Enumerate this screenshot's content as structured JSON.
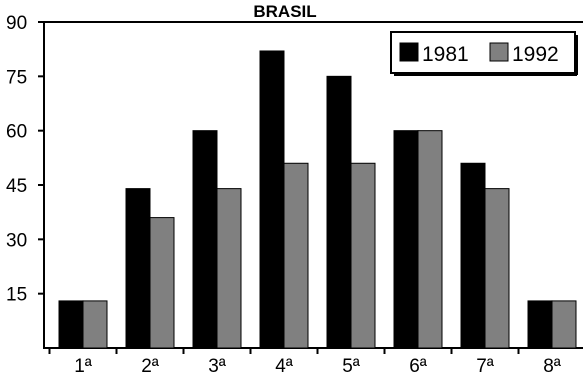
{
  "chart_data": {
    "type": "bar",
    "title": "BRASIL",
    "categories": [
      "1ª",
      "2ª",
      "3ª",
      "4ª",
      "5ª",
      "6ª",
      "7ª",
      "8ª"
    ],
    "series": [
      {
        "name": "1981",
        "values": [
          13,
          44,
          60,
          82,
          75,
          60,
          51,
          13
        ],
        "color": "#000000"
      },
      {
        "name": "1992",
        "values": [
          13,
          36,
          44,
          51,
          51,
          60,
          44,
          13
        ],
        "color": "#808080"
      }
    ],
    "ylim": [
      0,
      90
    ],
    "yticks": [
      "15",
      "30",
      "45",
      "60",
      "75",
      "90"
    ],
    "xlabel": "",
    "ylabel": "",
    "grid": false,
    "legend": "top-right"
  }
}
